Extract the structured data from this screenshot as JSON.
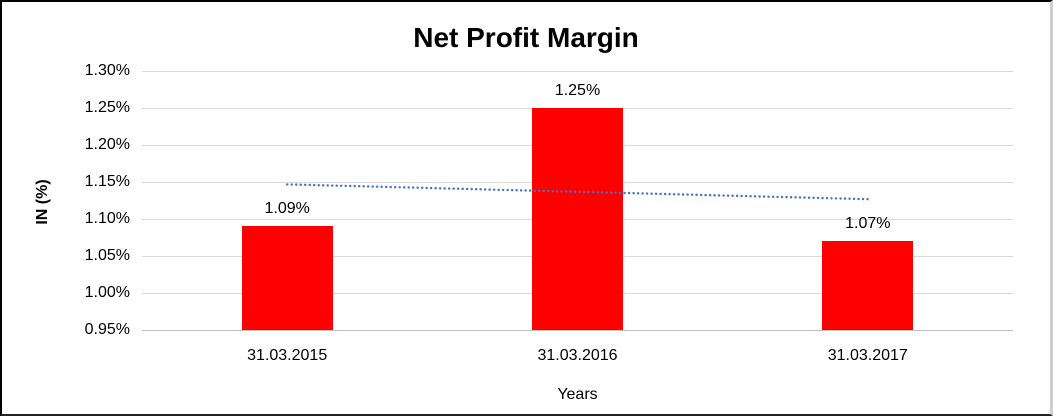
{
  "window": {
    "background_color": "#ffffff",
    "frame_border_color": "#000000"
  },
  "chart_data": {
    "type": "bar",
    "title": "Net Profit Margin",
    "xlabel": "Years",
    "ylabel": "IN (%)",
    "categories": [
      "31.03.2015",
      "31.03.2016",
      "31.03.2017"
    ],
    "values": [
      1.09,
      1.25,
      1.07
    ],
    "data_labels": [
      "1.09%",
      "1.25%",
      "1.07%"
    ],
    "ylim": [
      0.95,
      1.3
    ],
    "ytick_step": 0.05,
    "ytick_labels": [
      "1.30%",
      "1.25%",
      "1.20%",
      "1.15%",
      "1.10%",
      "1.05%",
      "1.00%",
      "0.95%"
    ],
    "grid": true,
    "legend": "none",
    "bar_color": "#FF0000",
    "gridline_color": "#D9D9D9",
    "axis_line_color": "#BFBFBF",
    "text_color": "#000000",
    "trendline": {
      "type": "linear",
      "style": "dotted",
      "color": "#4472C4",
      "start_value": 1.1467,
      "end_value": 1.1267
    }
  }
}
